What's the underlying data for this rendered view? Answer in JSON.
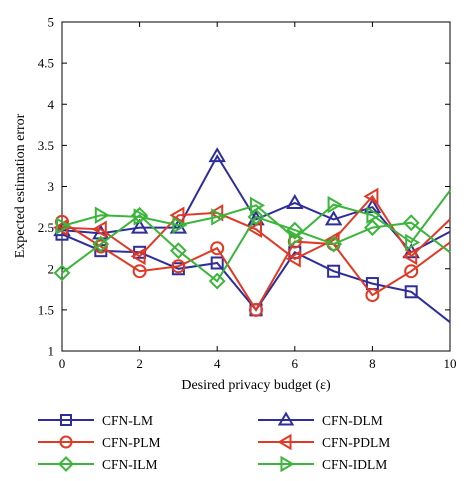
{
  "chart_data": {
    "type": "line",
    "xlabel": "Desired privacy budget (ε)",
    "ylabel": "Expected estimation error",
    "xlim": [
      0,
      10
    ],
    "ylim": [
      1,
      5
    ],
    "xticks": [
      0,
      2,
      4,
      6,
      8,
      10
    ],
    "yticks": [
      1,
      1.5,
      2,
      2.5,
      3,
      3.5,
      4,
      4.5,
      5
    ],
    "ytick_labels": [
      "1",
      "1.5",
      "2",
      "2.5",
      "3",
      "3.5",
      "4",
      "4.5",
      "5"
    ],
    "grid": false,
    "legend_position": "bottom",
    "x": [
      0,
      1,
      2,
      3,
      4,
      5,
      6,
      7,
      8,
      9,
      10
    ],
    "series": [
      {
        "name": "CFN-LM",
        "color": "#2e2e9a",
        "marker": "square",
        "values": [
          2.42,
          2.22,
          2.2,
          2.0,
          2.07,
          1.5,
          2.2,
          1.97,
          1.82,
          1.72,
          1.35
        ]
      },
      {
        "name": "CFN-DLM",
        "color": "#2e2e9a",
        "marker": "triangle-up",
        "values": [
          2.47,
          2.43,
          2.5,
          2.5,
          3.37,
          2.6,
          2.8,
          2.6,
          2.75,
          2.2,
          2.45
        ]
      },
      {
        "name": "CFN-PLM",
        "color": "#e03a26",
        "marker": "circle",
        "values": [
          2.57,
          2.27,
          1.97,
          2.03,
          2.25,
          1.5,
          2.33,
          2.3,
          1.68,
          1.97,
          2.32
        ]
      },
      {
        "name": "CFN-PDLM",
        "color": "#e03a26",
        "marker": "triangle-left",
        "values": [
          2.5,
          2.48,
          2.15,
          2.65,
          2.68,
          2.48,
          2.12,
          2.35,
          2.88,
          2.15,
          2.6
        ]
      },
      {
        "name": "CFN-ILM",
        "color": "#3bb53b",
        "marker": "diamond",
        "values": [
          1.95,
          2.3,
          2.65,
          2.22,
          1.85,
          2.63,
          2.47,
          2.3,
          2.5,
          2.56,
          2.2
        ]
      },
      {
        "name": "CFN-IDLM",
        "color": "#3bb53b",
        "marker": "triangle-right",
        "values": [
          2.52,
          2.65,
          2.63,
          2.53,
          2.63,
          2.77,
          2.37,
          2.78,
          2.65,
          2.32,
          2.95
        ]
      }
    ]
  }
}
